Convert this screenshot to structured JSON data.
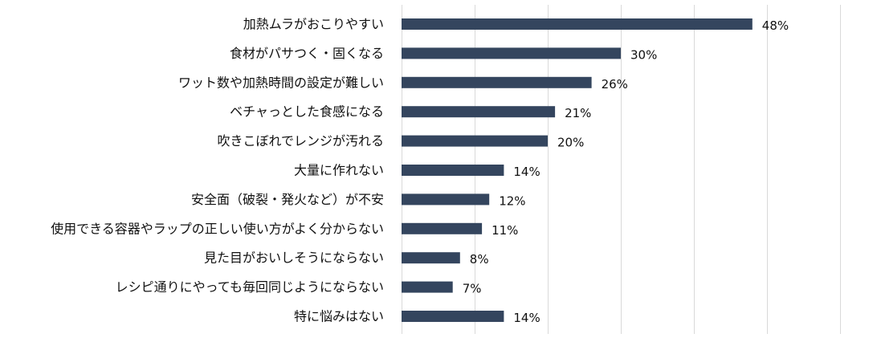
{
  "chart_data": {
    "type": "bar",
    "orientation": "horizontal",
    "categories": [
      "加熱ムラがおこりやすい",
      "食材がパサつく・固くなる",
      "ワット数や加熱時間の設定が難しい",
      "ベチャっとした食感になる",
      "吹きこぼれでレンジが汚れる",
      "大量に作れない",
      "安全面（破裂・発火など）が不安",
      "使用できる容器やラップの正しい使い方がよく分からない",
      "見た目がおいしそうにならない",
      "レシピ通りにやっても毎回同じようにならない",
      "特に悩みはない"
    ],
    "values": [
      48,
      30,
      26,
      21,
      20,
      14,
      12,
      11,
      8,
      7,
      14
    ],
    "data_labels": [
      "48%",
      "30%",
      "26%",
      "21%",
      "20%",
      "14%",
      "12%",
      "11%",
      "8%",
      "7%",
      "14%"
    ],
    "xlim": [
      0,
      60
    ],
    "grid_step": 10,
    "grid": true,
    "bar_color": "#34455e"
  }
}
